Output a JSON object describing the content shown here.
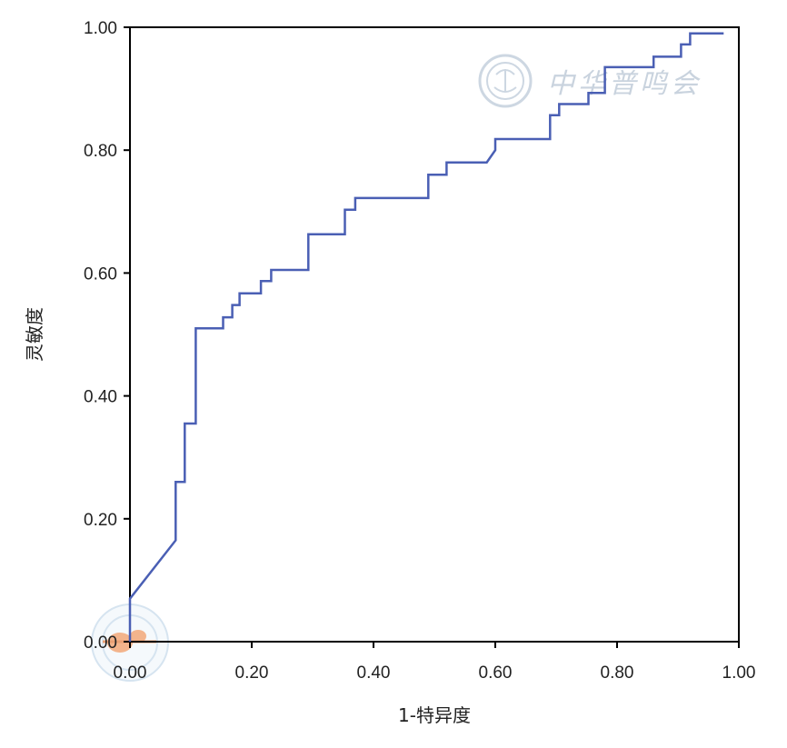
{
  "chart_data": {
    "type": "line",
    "title": "",
    "xlabel": "1-特异度",
    "ylabel": "灵敏度",
    "xlim": [
      0,
      1
    ],
    "ylim": [
      0,
      1
    ],
    "grid": false,
    "xticks": [
      "0.00",
      "0.20",
      "0.40",
      "0.60",
      "0.80",
      "1.00"
    ],
    "yticks": [
      "0.00",
      "0.20",
      "0.40",
      "0.60",
      "0.80",
      "1.00"
    ],
    "colors": {
      "line": "#4a5fb4",
      "axes": "#000000",
      "watermark": "#c9d3de"
    },
    "series": [
      {
        "x": [
          0,
          0,
          0.075,
          0.075,
          0.09,
          0.09,
          0.108,
          0.108,
          0.153,
          0.153,
          0.168,
          0.168,
          0.18,
          0.18,
          0.215,
          0.215,
          0.232,
          0.232,
          0.293,
          0.293,
          0.353,
          0.353,
          0.37,
          0.37,
          0.49,
          0.49,
          0.52,
          0.52,
          0.586,
          0.6,
          0.6,
          0.69,
          0.69,
          0.705,
          0.705,
          0.753,
          0.753,
          0.78,
          0.78,
          0.86,
          0.86,
          0.905,
          0.905,
          0.92,
          0.92,
          0.975
        ],
        "y": [
          0,
          0.07,
          0.165,
          0.26,
          0.26,
          0.355,
          0.355,
          0.51,
          0.51,
          0.528,
          0.528,
          0.548,
          0.548,
          0.567,
          0.567,
          0.587,
          0.587,
          0.605,
          0.605,
          0.663,
          0.663,
          0.703,
          0.703,
          0.722,
          0.722,
          0.76,
          0.76,
          0.78,
          0.78,
          0.8,
          0.818,
          0.818,
          0.857,
          0.857,
          0.875,
          0.875,
          0.893,
          0.893,
          0.935,
          0.935,
          0.952,
          0.952,
          0.972,
          0.972,
          0.99,
          0.99
        ]
      }
    ]
  },
  "watermark": {
    "text": "中华普鸣会"
  }
}
